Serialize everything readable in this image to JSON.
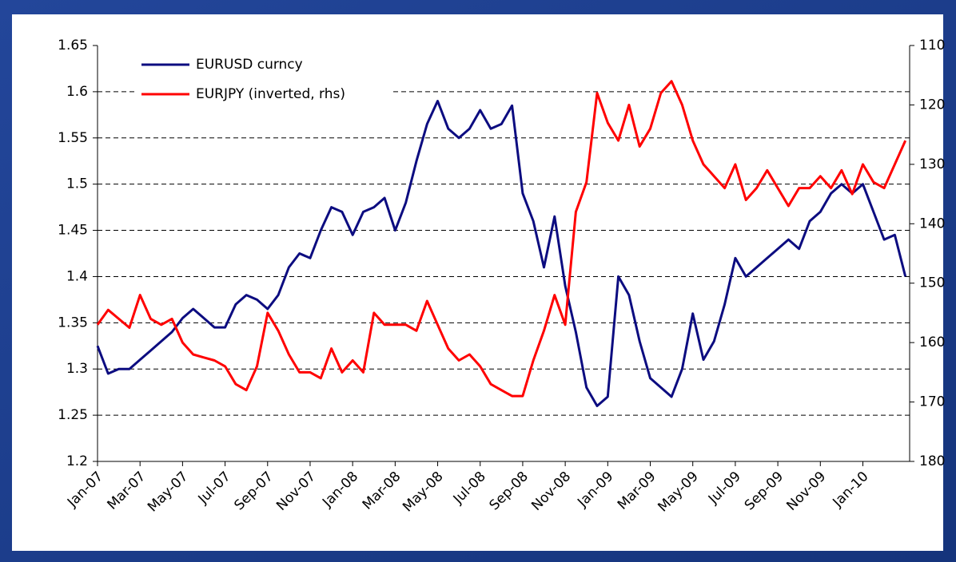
{
  "chart_data": {
    "type": "line",
    "x": [
      0,
      0.5,
      1,
      1.5,
      2,
      2.5,
      3,
      3.5,
      4,
      4.5,
      5,
      5.5,
      6,
      6.5,
      7,
      7.5,
      8,
      8.5,
      9,
      9.5,
      10,
      10.5,
      11,
      11.5,
      12,
      12.5,
      13,
      13.5,
      14,
      14.5,
      15,
      15.5,
      16,
      16.5,
      17,
      17.5,
      18,
      18.5,
      19,
      19.5,
      20,
      20.5,
      21,
      21.5,
      22,
      22.5,
      23,
      23.5,
      24,
      24.5,
      25,
      25.5,
      26,
      26.5,
      27,
      27.5,
      28,
      28.5,
      29,
      29.5,
      30,
      30.5,
      31,
      31.5,
      32,
      32.5,
      33,
      33.5,
      34,
      34.5,
      35,
      35.5,
      36,
      36.5,
      37,
      37.5,
      38
    ],
    "xlim": [
      0,
      38.2
    ],
    "xticks": [
      {
        "value": 0,
        "label": "Jan-07"
      },
      {
        "value": 2,
        "label": "Mar-07"
      },
      {
        "value": 4,
        "label": "May-07"
      },
      {
        "value": 6,
        "label": "Jul-07"
      },
      {
        "value": 8,
        "label": "Sep-07"
      },
      {
        "value": 10,
        "label": "Nov-07"
      },
      {
        "value": 12,
        "label": "Jan-08"
      },
      {
        "value": 14,
        "label": "Mar-08"
      },
      {
        "value": 16,
        "label": "May-08"
      },
      {
        "value": 18,
        "label": "Jul-08"
      },
      {
        "value": 20,
        "label": "Sep-08"
      },
      {
        "value": 22,
        "label": "Nov-08"
      },
      {
        "value": 24,
        "label": "Jan-09"
      },
      {
        "value": 26,
        "label": "Mar-09"
      },
      {
        "value": 28,
        "label": "May-09"
      },
      {
        "value": 30,
        "label": "Jul-09"
      },
      {
        "value": 32,
        "label": "Sep-09"
      },
      {
        "value": 34,
        "label": "Nov-09"
      },
      {
        "value": 36,
        "label": "Jan-10"
      }
    ],
    "ylim": [
      1.2,
      1.65
    ],
    "yticks": [
      1.2,
      1.25,
      1.3,
      1.35,
      1.4,
      1.45,
      1.5,
      1.55,
      1.6,
      1.65
    ],
    "y2lim": [
      180,
      110
    ],
    "y2ticks": [
      110,
      120,
      130,
      140,
      150,
      160,
      170,
      180
    ],
    "grid": true,
    "legend": "upper left",
    "series": [
      {
        "name": "EURUSD curncy",
        "color": "#0c0c80",
        "values": [
          1.325,
          1.295,
          1.3,
          1.3,
          1.31,
          1.32,
          1.33,
          1.34,
          1.355,
          1.365,
          1.355,
          1.345,
          1.345,
          1.37,
          1.38,
          1.375,
          1.365,
          1.38,
          1.41,
          1.425,
          1.42,
          1.45,
          1.475,
          1.47,
          1.445,
          1.47,
          1.475,
          1.485,
          1.45,
          1.48,
          1.525,
          1.565,
          1.59,
          1.56,
          1.55,
          1.56,
          1.58,
          1.56,
          1.565,
          1.585,
          1.49,
          1.46,
          1.41,
          1.465,
          1.39,
          1.34,
          1.28,
          1.26,
          1.27,
          1.4,
          1.38,
          1.33,
          1.29,
          1.28,
          1.27,
          1.3,
          1.36,
          1.31,
          1.33,
          1.37,
          1.42,
          1.4,
          1.41,
          1.42,
          1.43,
          1.44,
          1.43,
          1.46,
          1.47,
          1.49,
          1.5,
          1.49,
          1.5,
          1.47,
          1.44,
          1.445,
          1.4
        ]
      },
      {
        "name": "EURJPY (inverted, rhs)",
        "color": "#ff0000",
        "axis": "y2",
        "values": [
          157,
          154.5,
          156,
          157.5,
          152,
          156,
          157,
          156,
          160,
          162,
          162.5,
          163,
          164,
          167,
          168,
          164,
          155,
          158,
          162,
          165,
          165,
          166,
          161,
          165,
          163,
          165,
          155,
          157,
          157,
          157,
          158,
          153,
          157,
          161,
          163,
          162,
          164,
          167,
          168,
          169,
          169,
          163,
          158,
          152,
          157,
          138,
          133,
          118,
          123,
          126,
          120,
          127,
          124,
          118,
          116,
          120,
          126,
          130,
          132,
          134,
          130,
          136,
          134,
          131,
          134,
          137,
          134,
          134,
          132,
          134,
          131,
          135,
          130,
          133,
          134,
          130,
          126
        ]
      }
    ]
  }
}
